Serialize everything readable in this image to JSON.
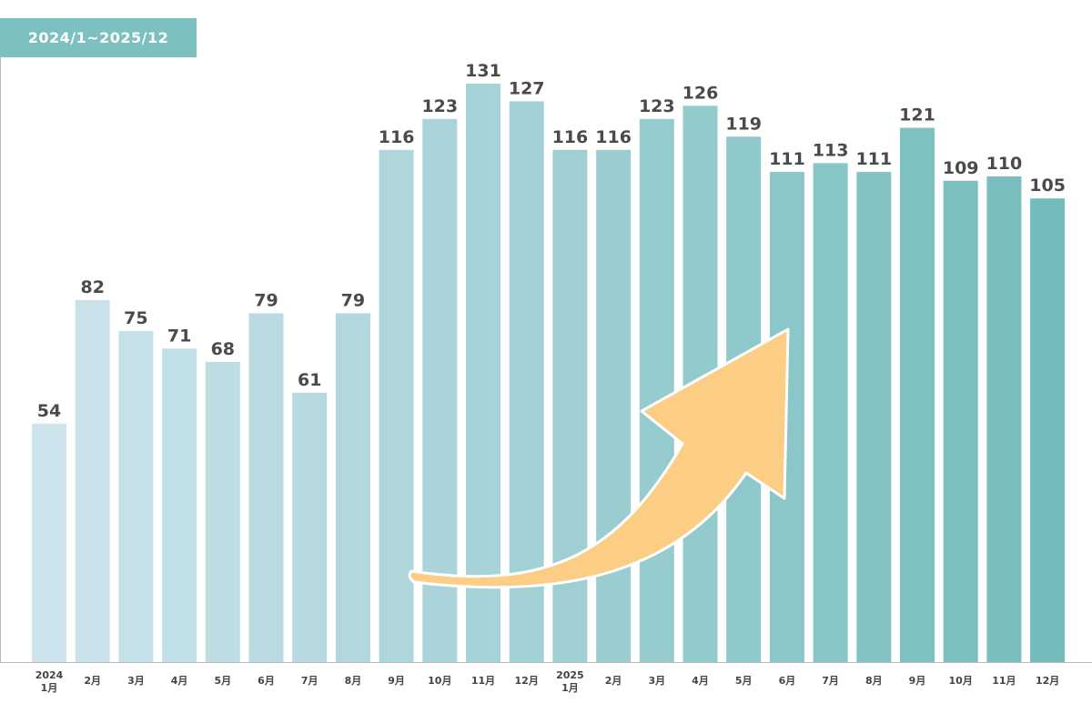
{
  "chart_data": {
    "type": "bar",
    "period_label": "2024/1~2025/12",
    "categories": [
      [
        "2024",
        "1月"
      ],
      [
        "2月"
      ],
      [
        "3月"
      ],
      [
        "4月"
      ],
      [
        "5月"
      ],
      [
        "6月"
      ],
      [
        "7月"
      ],
      [
        "8月"
      ],
      [
        "9月"
      ],
      [
        "10月"
      ],
      [
        "11月"
      ],
      [
        "12月"
      ],
      [
        "2025",
        "1月"
      ],
      [
        "2月"
      ],
      [
        "3月"
      ],
      [
        "4月"
      ],
      [
        "5月"
      ],
      [
        "6月"
      ],
      [
        "7月"
      ],
      [
        "8月"
      ],
      [
        "9月"
      ],
      [
        "10月"
      ],
      [
        "11月"
      ],
      [
        "12月"
      ]
    ],
    "values": [
      54,
      82,
      75,
      71,
      68,
      79,
      61,
      79,
      116,
      123,
      131,
      127,
      116,
      116,
      123,
      126,
      119,
      111,
      113,
      111,
      121,
      109,
      110,
      105
    ],
    "ylim": [
      0,
      131
    ],
    "grid": false,
    "colors": {
      "bar_start": "#cde4ec",
      "bar_end": "#74bcbb",
      "badge": "#7cc0c0",
      "arrow": "#fbcd85",
      "axis": "#bbbbbb"
    },
    "annotation": "upward-trend-arrow"
  }
}
